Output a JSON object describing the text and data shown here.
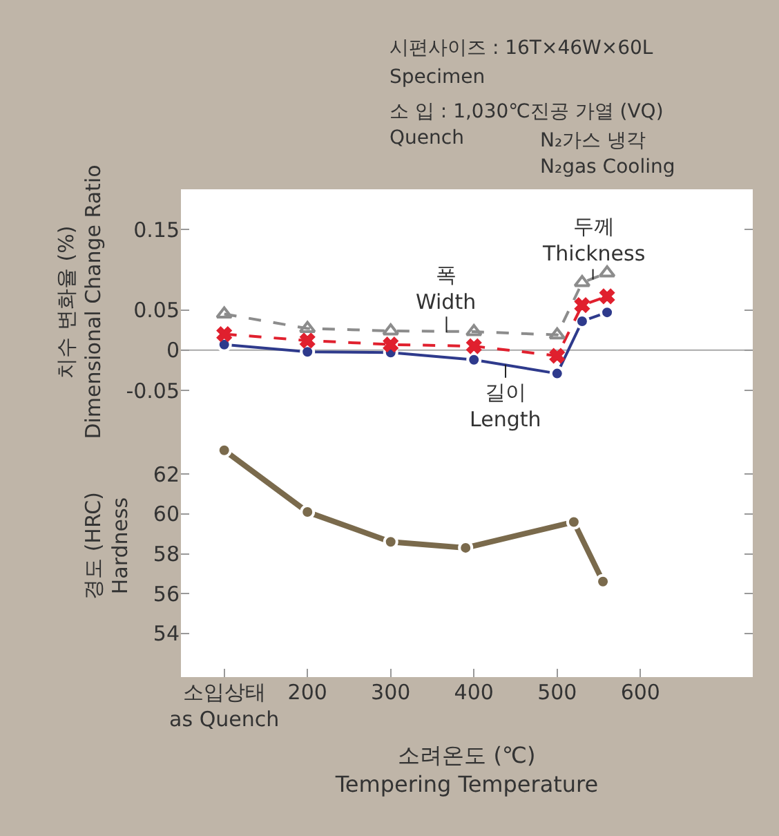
{
  "chart_data": [
    {
      "type": "line",
      "ylabel": "치수 변화율 (%)\nDimensional Change Ratio",
      "x": [
        100,
        200,
        300,
        400,
        500,
        530,
        560
      ],
      "xlim": [
        48,
        735
      ],
      "ylim": [
        -0.08,
        0.2
      ],
      "yticks": [
        -0.05,
        0,
        0.05,
        0.15
      ],
      "tick_labels": "y",
      "grid": false,
      "series": [
        {
          "color": "#2e3a8c",
          "values": [
            0.007,
            -0.002,
            -0.003,
            -0.012,
            -0.029,
            0.036,
            0.047
          ],
          "marker": "circle",
          "line_style": "solid"
        },
        {
          "color": "#e0202e",
          "values": [
            0.02,
            0.012,
            0.007,
            0.005,
            -0.007,
            0.056,
            0.067
          ],
          "marker": "cross",
          "line_style": "dashed"
        },
        {
          "color": "#8c8c8c",
          "values": [
            0.045,
            0.027,
            0.024,
            0.023,
            0.019,
            0.084,
            0.096
          ],
          "marker": "triangle",
          "line_style": "dashed"
        }
      ],
      "ref_lines": [
        {
          "axis": "y",
          "value": 0,
          "color": "#a8a8a8"
        }
      ],
      "annotations": [
        "시편사이즈 : 16T×46W×60L",
        "Specimen",
        "소 입 : 1,030℃진공 가열 (VQ)",
        "Quench",
        "N₂가스 냉각",
        "N₂gas Cooling",
        {
          "text": "폭\nWidth",
          "x": 367,
          "y": 0.022
        },
        {
          "text": "두께\nThickness",
          "x": 543,
          "y": 0.088
        },
        {
          "text": "길이\nLength",
          "x": 438,
          "y": -0.018
        }
      ]
    },
    {
      "type": "line",
      "ylabel": "경도 (HRC)\nHardness",
      "xlabel": "소려온도 (℃)\nTempering Temperature",
      "x": [
        100,
        200,
        300,
        390,
        520,
        555
      ],
      "xlim": [
        48,
        735
      ],
      "xticks": [
        {
          "value": 100,
          "label": "소입상태\nas Quench"
        },
        200,
        300,
        400,
        500,
        600
      ],
      "ylim": [
        51.8,
        65
      ],
      "yticks": [
        54,
        56,
        58,
        60,
        62
      ],
      "grid": false,
      "series": [
        {
          "color": "#7a6a4c",
          "values": [
            63.2,
            60.1,
            58.6,
            58.3,
            59.6,
            56.6
          ],
          "marker": "circle",
          "line_style": "solid"
        }
      ]
    }
  ]
}
